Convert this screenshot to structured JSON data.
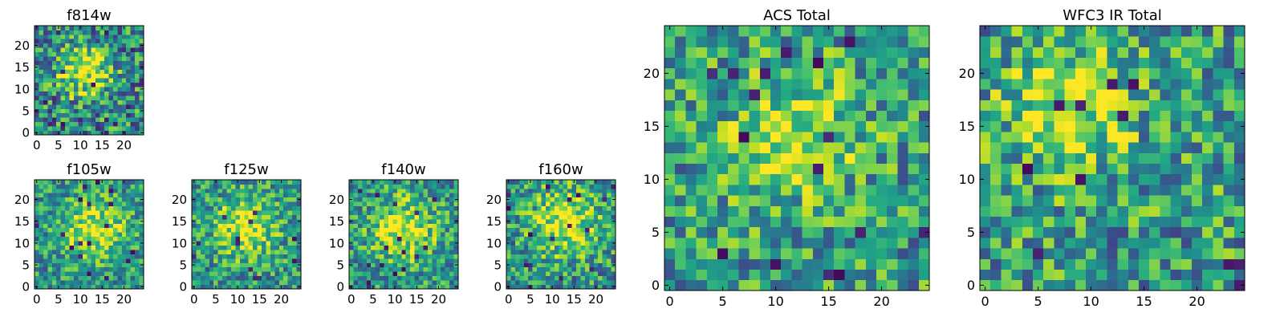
{
  "chart_data": [
    {
      "type": "heatmap",
      "title": "f814w",
      "grid": false,
      "size": 25,
      "xlim": [
        -0.5,
        24.5
      ],
      "ylim": [
        -0.5,
        24.5
      ],
      "xticks": [
        0,
        5,
        10,
        15,
        20
      ],
      "yticks": [
        0,
        5,
        10,
        15,
        20
      ],
      "colormap": "viridis",
      "center": [
        11,
        14
      ],
      "sigma": 4.2,
      "amplitude": 0.55,
      "base": 0.45,
      "noise": 0.38,
      "seed": 3
    },
    {
      "type": "heatmap",
      "title": "f105w",
      "grid": false,
      "size": 25,
      "xlim": [
        -0.5,
        24.5
      ],
      "ylim": [
        -0.5,
        24.5
      ],
      "xticks": [
        0,
        5,
        10,
        15,
        20
      ],
      "yticks": [
        0,
        5,
        10,
        15,
        20
      ],
      "colormap": "viridis",
      "center": [
        13,
        13
      ],
      "sigma": 5.0,
      "amplitude": 0.45,
      "base": 0.52,
      "noise": 0.28,
      "seed": 11
    },
    {
      "type": "heatmap",
      "title": "f125w",
      "grid": false,
      "size": 25,
      "xlim": [
        -0.5,
        24.5
      ],
      "ylim": [
        -0.5,
        24.5
      ],
      "xticks": [
        0,
        5,
        10,
        15,
        20
      ],
      "yticks": [
        0,
        5,
        10,
        15,
        20
      ],
      "colormap": "viridis",
      "center": [
        12,
        14
      ],
      "sigma": 5.0,
      "amplitude": 0.45,
      "base": 0.52,
      "noise": 0.3,
      "seed": 17
    },
    {
      "type": "heatmap",
      "title": "f140w",
      "grid": false,
      "size": 25,
      "xlim": [
        -0.5,
        24.5
      ],
      "ylim": [
        -0.5,
        24.5
      ],
      "xticks": [
        0,
        5,
        10,
        15,
        20
      ],
      "yticks": [
        0,
        5,
        10,
        15,
        20
      ],
      "colormap": "viridis",
      "center": [
        12,
        13
      ],
      "sigma": 5.0,
      "amplitude": 0.45,
      "base": 0.52,
      "noise": 0.3,
      "seed": 23
    },
    {
      "type": "heatmap",
      "title": "f160w",
      "grid": false,
      "size": 25,
      "xlim": [
        -0.5,
        24.5
      ],
      "ylim": [
        -0.5,
        24.5
      ],
      "xticks": [
        0,
        5,
        10,
        15,
        20
      ],
      "yticks": [
        0,
        5,
        10,
        15,
        20
      ],
      "colormap": "viridis",
      "center": [
        13,
        15
      ],
      "sigma": 5.5,
      "amplitude": 0.45,
      "base": 0.5,
      "noise": 0.32,
      "seed": 29
    },
    {
      "type": "heatmap",
      "title": "ACS Total",
      "grid": false,
      "size": 25,
      "xlim": [
        -0.5,
        24.5
      ],
      "ylim": [
        -0.5,
        24.5
      ],
      "xticks": [
        0,
        5,
        10,
        15,
        20
      ],
      "yticks": [
        0,
        5,
        10,
        15,
        20
      ],
      "colormap": "viridis",
      "center": [
        12,
        14
      ],
      "sigma": 4.0,
      "amplitude": 0.4,
      "base": 0.55,
      "noise": 0.32,
      "seed": 37
    },
    {
      "type": "heatmap",
      "title": "WFC3 IR Total",
      "grid": false,
      "size": 25,
      "xlim": [
        -0.5,
        24.5
      ],
      "ylim": [
        -0.5,
        24.5
      ],
      "xticks": [
        0,
        5,
        10,
        15,
        20
      ],
      "yticks": [
        0,
        5,
        10,
        15,
        20
      ],
      "colormap": "viridis",
      "center": [
        8,
        17
      ],
      "sigma": 4.0,
      "amplitude": 0.4,
      "base": 0.55,
      "noise": 0.34,
      "seed": 41
    }
  ]
}
